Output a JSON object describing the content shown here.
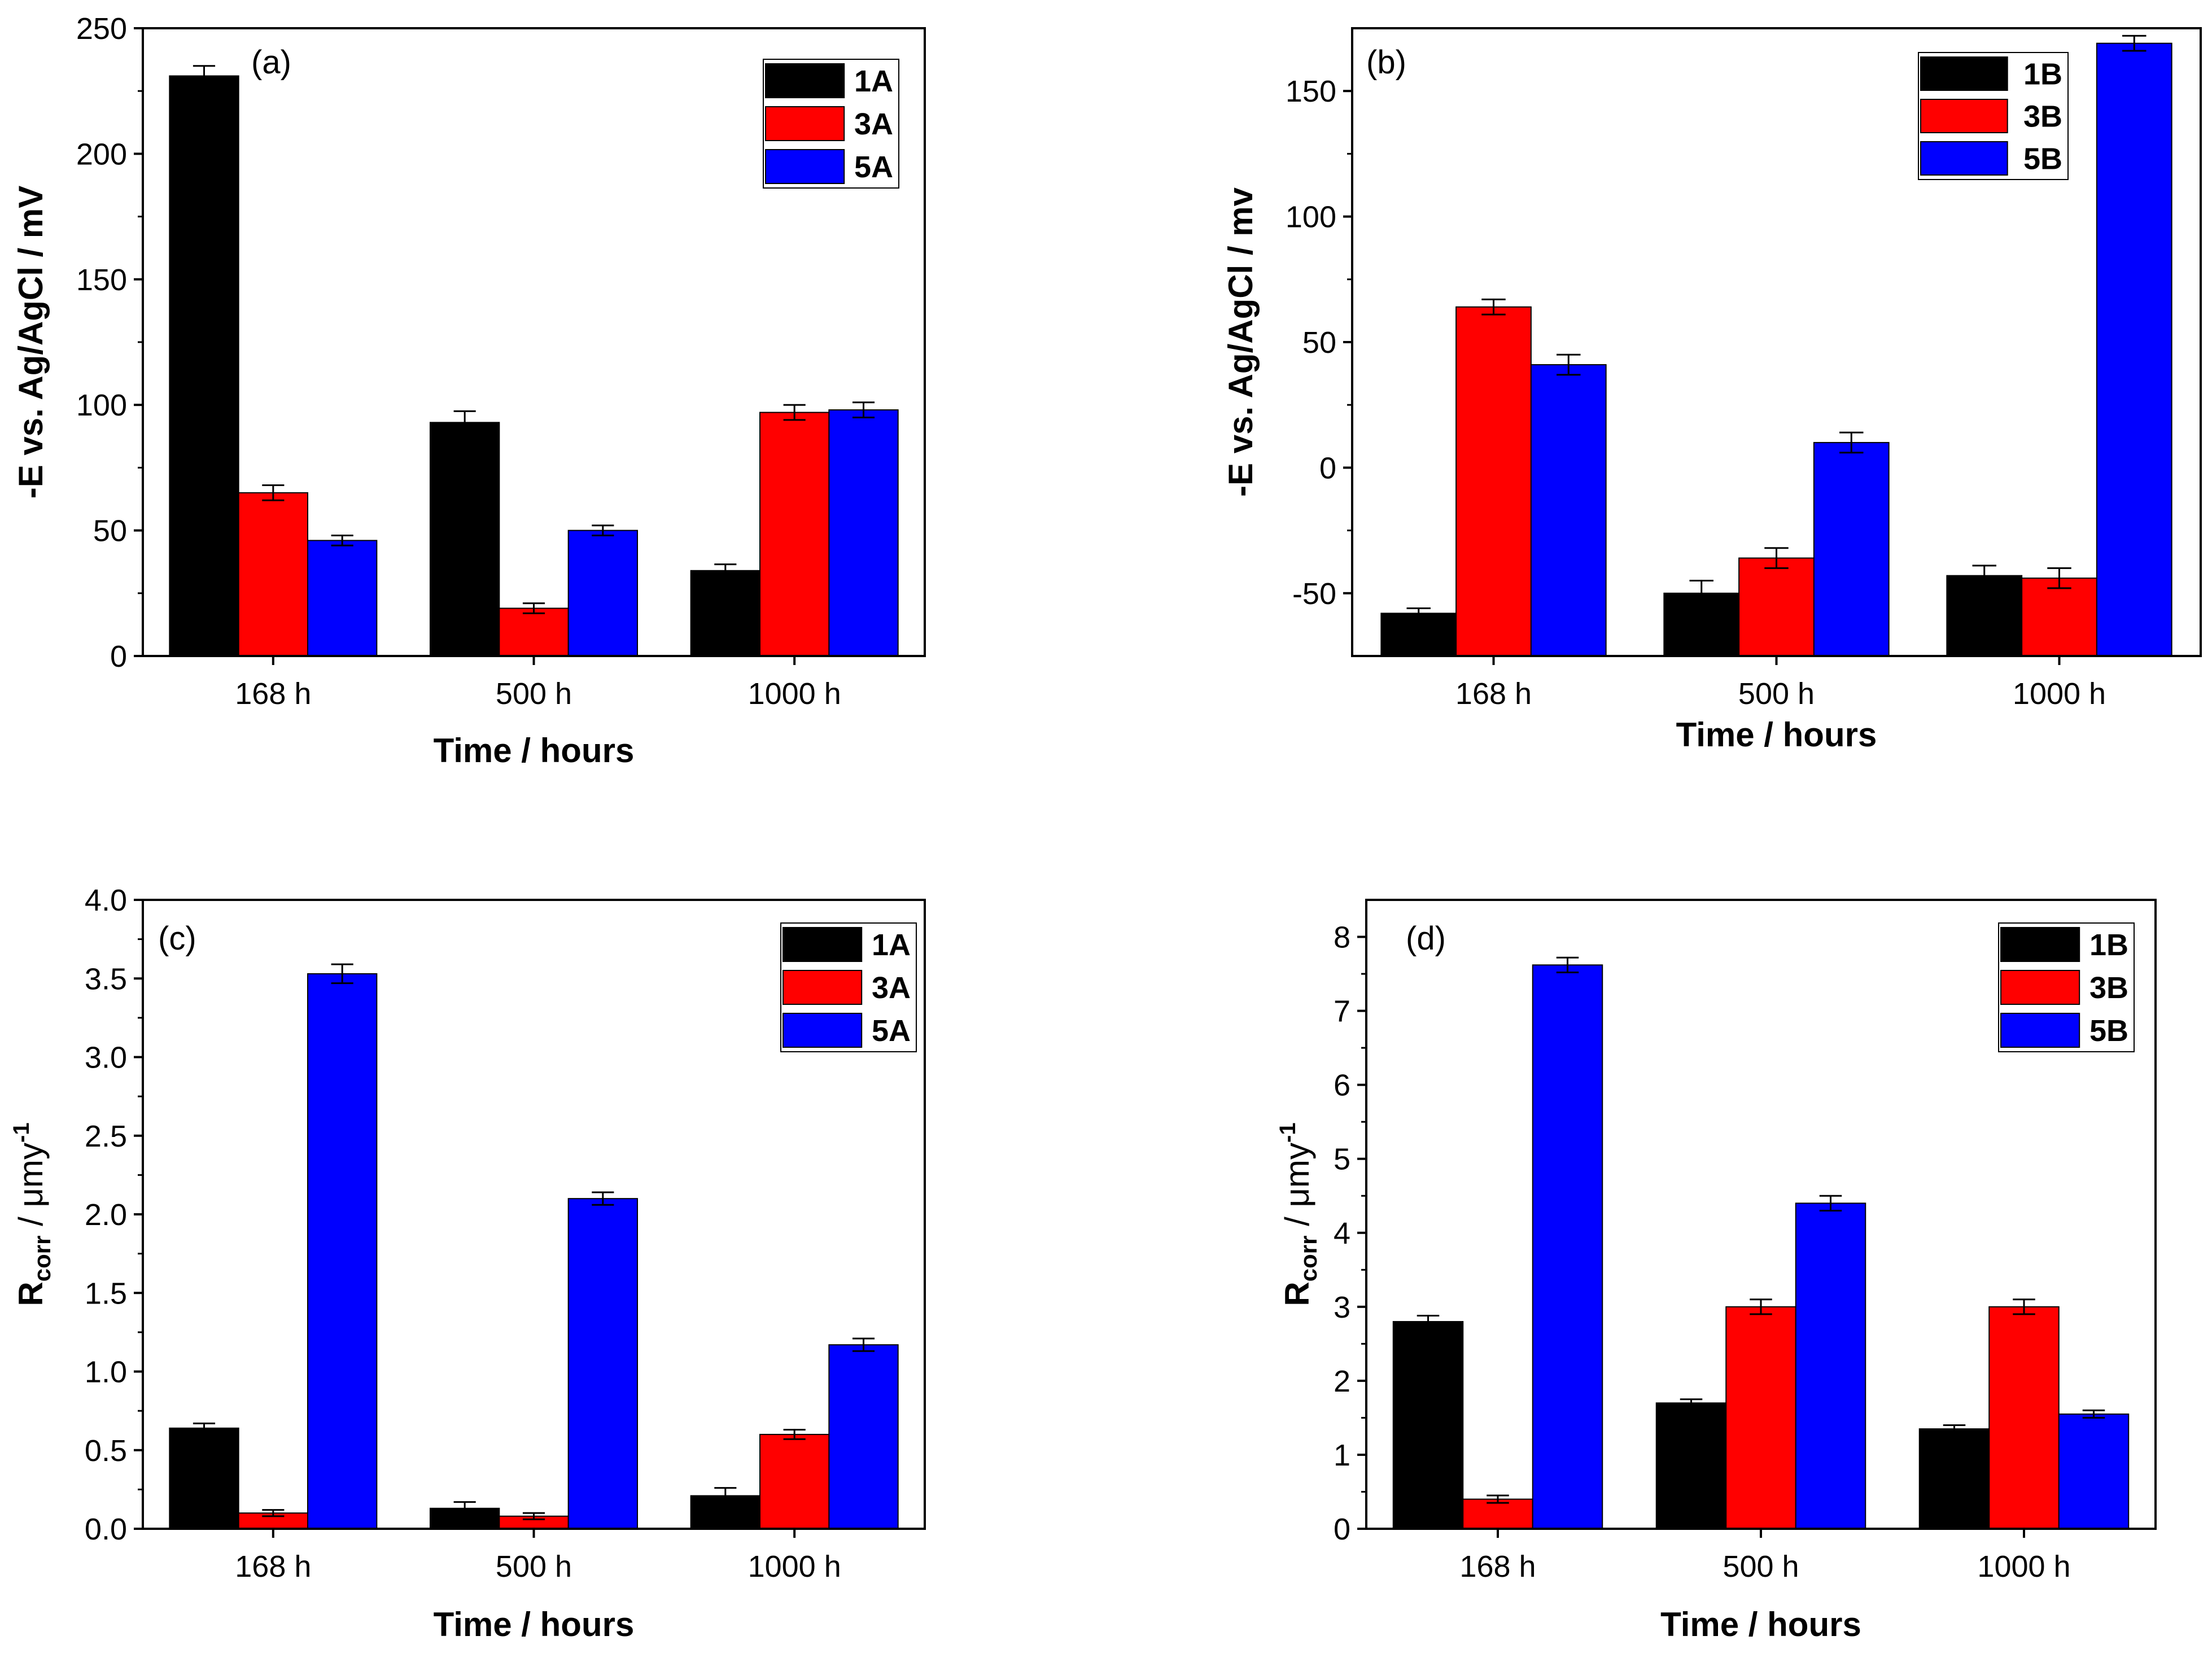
{
  "colors": {
    "series1": "#000000",
    "series2": "#ff0000",
    "series3": "#0000ff"
  },
  "chart_data": [
    {
      "panel": "(a)",
      "type": "bar",
      "categories": [
        "168 h",
        "500 h",
        "1000 h"
      ],
      "series": [
        {
          "name": "1A",
          "values": [
            231,
            93,
            34
          ],
          "errors": [
            4,
            4.5,
            2.5
          ]
        },
        {
          "name": "3A",
          "values": [
            65,
            19,
            97
          ],
          "errors": [
            3,
            2,
            3
          ]
        },
        {
          "name": "5A",
          "values": [
            46,
            50,
            98
          ],
          "errors": [
            2,
            2,
            3
          ]
        }
      ],
      "xlabel": "Time / hours",
      "ylabel": "-E vs. Ag/AgCl / mV",
      "ylim": [
        0,
        250
      ],
      "yticks": [
        0,
        50,
        100,
        150,
        200,
        250
      ],
      "legend": "top-right"
    },
    {
      "panel": "(b)",
      "type": "bar",
      "categories": [
        "168 h",
        "500 h",
        "1000 h"
      ],
      "series": [
        {
          "name": "1B",
          "values": [
            -58,
            -50,
            -43
          ],
          "errors": [
            2,
            5,
            4
          ]
        },
        {
          "name": "3B",
          "values": [
            64,
            -36,
            -44
          ],
          "errors": [
            3,
            4,
            4
          ]
        },
        {
          "name": "5B",
          "values": [
            41,
            10,
            169
          ],
          "errors": [
            4,
            4,
            3
          ]
        }
      ],
      "xlabel": "Time / hours",
      "ylabel": "-E vs. Ag/AgCl / mv",
      "ylim": [
        -75,
        175
      ],
      "yticks": [
        -50,
        0,
        50,
        100,
        150
      ],
      "legend": "top-right"
    },
    {
      "panel": "(c)",
      "type": "bar",
      "categories": [
        "168 h",
        "500 h",
        "1000 h"
      ],
      "series": [
        {
          "name": "1A",
          "values": [
            0.64,
            0.13,
            0.21
          ],
          "errors": [
            0.03,
            0.04,
            0.05
          ]
        },
        {
          "name": "3A",
          "values": [
            0.1,
            0.08,
            0.6
          ],
          "errors": [
            0.02,
            0.02,
            0.03
          ]
        },
        {
          "name": "5A",
          "values": [
            3.53,
            2.1,
            1.17
          ],
          "errors": [
            0.06,
            0.04,
            0.04
          ]
        }
      ],
      "xlabel": "Time / hours",
      "ylabel": {
        "main": "R",
        "sub": "corr",
        "rest": " / μmy",
        "sup": "-1"
      },
      "ylim": [
        0,
        4.0
      ],
      "yticks": [
        "0.0",
        "0.5",
        "1.0",
        "1.5",
        "2.0",
        "2.5",
        "3.0",
        "3.5",
        "4.0"
      ],
      "legend": "top-right"
    },
    {
      "panel": "(d)",
      "type": "bar",
      "categories": [
        "168 h",
        "500 h",
        "1000 h"
      ],
      "series": [
        {
          "name": "1B",
          "values": [
            2.8,
            1.7,
            1.35
          ],
          "errors": [
            0.08,
            0.05,
            0.05
          ]
        },
        {
          "name": "3B",
          "values": [
            0.4,
            3.0,
            3.0
          ],
          "errors": [
            0.05,
            0.1,
            0.1
          ]
        },
        {
          "name": "5B",
          "values": [
            7.62,
            4.4,
            1.55
          ],
          "errors": [
            0.1,
            0.1,
            0.05
          ]
        }
      ],
      "xlabel": "Time / hours",
      "ylabel": {
        "main": "R",
        "sub": "corr",
        "rest": " / μmy",
        "sup": "-1"
      },
      "ylim": [
        0,
        8.5
      ],
      "yticks": [
        0,
        1,
        2,
        3,
        4,
        5,
        6,
        7,
        8
      ],
      "legend": "top-right"
    }
  ]
}
